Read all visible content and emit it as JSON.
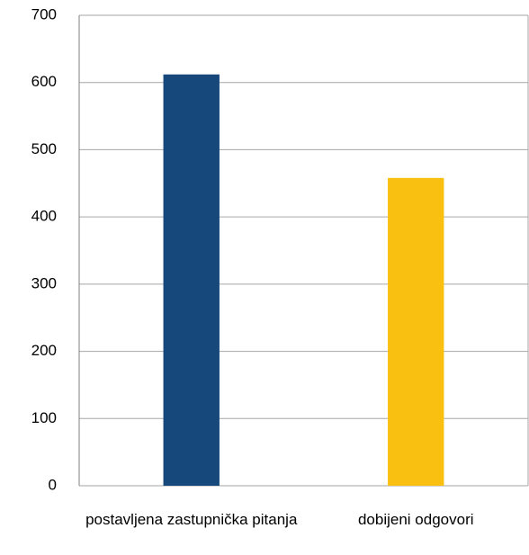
{
  "chart_data": {
    "type": "bar",
    "categories": [
      "postavljena zastupnička pitanja",
      "dobijeni odgovori"
    ],
    "values": [
      612,
      458
    ],
    "colors": [
      "#17487c",
      "#f9c012"
    ],
    "ylim": [
      0,
      700
    ],
    "yticks": [
      0,
      100,
      200,
      300,
      400,
      500,
      600,
      700
    ],
    "grid": true
  }
}
